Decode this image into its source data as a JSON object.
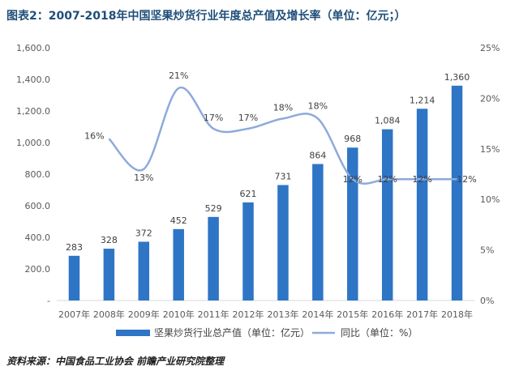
{
  "title": "图表2：2007-2018年中国坚果炒货行业年度总产值及增长率（单位：亿元；）",
  "source": "资料来源：中国食品工业协会  前瞻产业研究院整理",
  "colors": {
    "bar": "#2e75c6",
    "line": "#8eaadb",
    "title": "#1f4e79"
  },
  "chart_data": {
    "type": "bar",
    "categories": [
      "2007年",
      "2008年",
      "2009年",
      "2010年",
      "2011年",
      "2012年",
      "2013年",
      "2014年",
      "2015年",
      "2016年",
      "2017年",
      "2018年"
    ],
    "series": [
      {
        "name": "坚果炒货行业总产值（单位：亿元）",
        "type": "bar",
        "axis": "left",
        "values": [
          283,
          328,
          372,
          452,
          529,
          621,
          731,
          864,
          968,
          1084,
          1214,
          1360
        ],
        "labels": [
          "283",
          "328",
          "372",
          "452",
          "529",
          "621",
          "731",
          "864",
          "968",
          "1,084",
          "1,214",
          "1,360"
        ]
      },
      {
        "name": "同比（单位：%）",
        "type": "line",
        "axis": "right",
        "values": [
          null,
          16,
          13,
          21,
          17,
          17,
          18,
          18,
          12,
          12,
          12,
          12
        ],
        "labels": [
          "",
          "16%",
          "13%",
          "21%",
          "17%",
          "17%",
          "18%",
          "18%",
          "12%",
          "12%",
          "12%",
          "12%"
        ]
      }
    ],
    "y_left": {
      "range": [
        0,
        1600
      ],
      "tick_labels": [
        "-",
        "200.0",
        "400.0",
        "600.0",
        "800.0",
        "1,000.0",
        "1,200.0",
        "1,400.0",
        "1,600.0"
      ]
    },
    "y_right": {
      "range": [
        0,
        25
      ],
      "tick_labels": [
        "0%",
        "5%",
        "10%",
        "15%",
        "20%",
        "25%"
      ]
    },
    "grid": false,
    "legend_position": "bottom"
  }
}
